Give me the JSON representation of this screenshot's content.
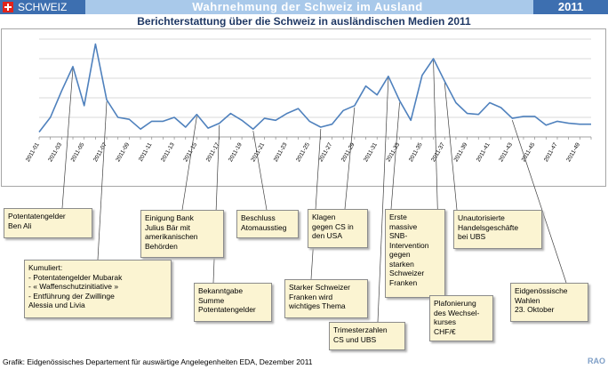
{
  "header": {
    "section": "SCHWEIZ",
    "title": "Wahrnehmung der Schweiz im Ausland",
    "year": "2011",
    "flag_icon": "swiss-flag-icon"
  },
  "subtitle": "Berichterstattung über die Schweiz in ausländischen Medien 2011",
  "colors": {
    "line": "#4f81bd",
    "grid": "#d9d9d9",
    "note_bg": "#fbf4d2",
    "header_dark": "#3d6fb0",
    "header_light": "#a9c9ea"
  },
  "chart_data": {
    "type": "line",
    "title": "",
    "xlabel": "",
    "ylabel": "",
    "grid": true,
    "tick_labels": [
      "2011-01",
      "2011-03",
      "2011-05",
      "2011-07",
      "2011-09",
      "2011-11",
      "2011-13",
      "2011-15",
      "2011-17",
      "2011-19",
      "2011-21",
      "2011-23",
      "2011-25",
      "2011-27",
      "2011-29",
      "2011-31",
      "2011-33",
      "2011-35",
      "2011-37",
      "2011-39",
      "2011-41",
      "2011-43",
      "2011-45",
      "2011-47",
      "2011-49"
    ],
    "x": [
      "2011-01",
      "2011-02",
      "2011-03",
      "2011-04",
      "2011-05",
      "2011-06",
      "2011-07",
      "2011-08",
      "2011-09",
      "2011-10",
      "2011-11",
      "2011-12",
      "2011-13",
      "2011-14",
      "2011-15",
      "2011-16",
      "2011-17",
      "2011-18",
      "2011-19",
      "2011-20",
      "2011-21",
      "2011-22",
      "2011-23",
      "2011-24",
      "2011-25",
      "2011-26",
      "2011-27",
      "2011-28",
      "2011-29",
      "2011-30",
      "2011-31",
      "2011-32",
      "2011-33",
      "2011-34",
      "2011-35",
      "2011-36",
      "2011-37",
      "2011-38",
      "2011-39",
      "2011-40",
      "2011-41",
      "2011-42",
      "2011-43",
      "2011-44",
      "2011-45",
      "2011-46",
      "2011-47",
      "2011-48",
      "2011-49",
      "2011-50"
    ],
    "series": [
      {
        "values": [
          5,
          20,
          47,
          72,
          32,
          95,
          38,
          20,
          18,
          8,
          16,
          16,
          20,
          10,
          23,
          9,
          14,
          24,
          17,
          8,
          19,
          17,
          24,
          29,
          16,
          10,
          13,
          27,
          32,
          52,
          43,
          62,
          37,
          17,
          63,
          80,
          57,
          35,
          24,
          23,
          35,
          30,
          19,
          21,
          21,
          12,
          16,
          14,
          13,
          13
        ]
      }
    ],
    "annotations": [
      {
        "text": "Potentatengelder\nBen Ali"
      },
      {
        "text": "Kumuliert:\n- Potentatengelder Mubarak\n- « Waffenschutzinitiative »\n- Entführung der Zwillinge\n  Alessia und Livia"
      },
      {
        "text": "Einigung Bank\nJulius Bär mit\namerikanischen\nBehörden"
      },
      {
        "text": "Bekanntgabe\nSumme\nPotentatengelder"
      },
      {
        "text": "Beschluss\nAtomausstieg"
      },
      {
        "text": "Starker Schweizer\nFranken wird\nwichtiges Thema"
      },
      {
        "text": "Klagen\ngegen CS in\nden USA"
      },
      {
        "text": "Trimesterzahlen\nCS und UBS"
      },
      {
        "text": "Erste\nmassive\nSNB-\nIntervention\ngegen\nstarken\nSchweizer\nFranken"
      },
      {
        "text": "Plafonierung\ndes Wechsel-\nkurses\nCHF/€"
      },
      {
        "text": "Unautorisierte\nHandelsgeschäfte\nbei UBS"
      },
      {
        "text": "Eidgenössische\nWahlen\n23. Oktober"
      }
    ]
  },
  "footer": {
    "credit": "Grafik: Eidgenössisches Departement für auswärtige Angelegenheiten EDA, Dezember 2011",
    "logo": "RAO"
  }
}
